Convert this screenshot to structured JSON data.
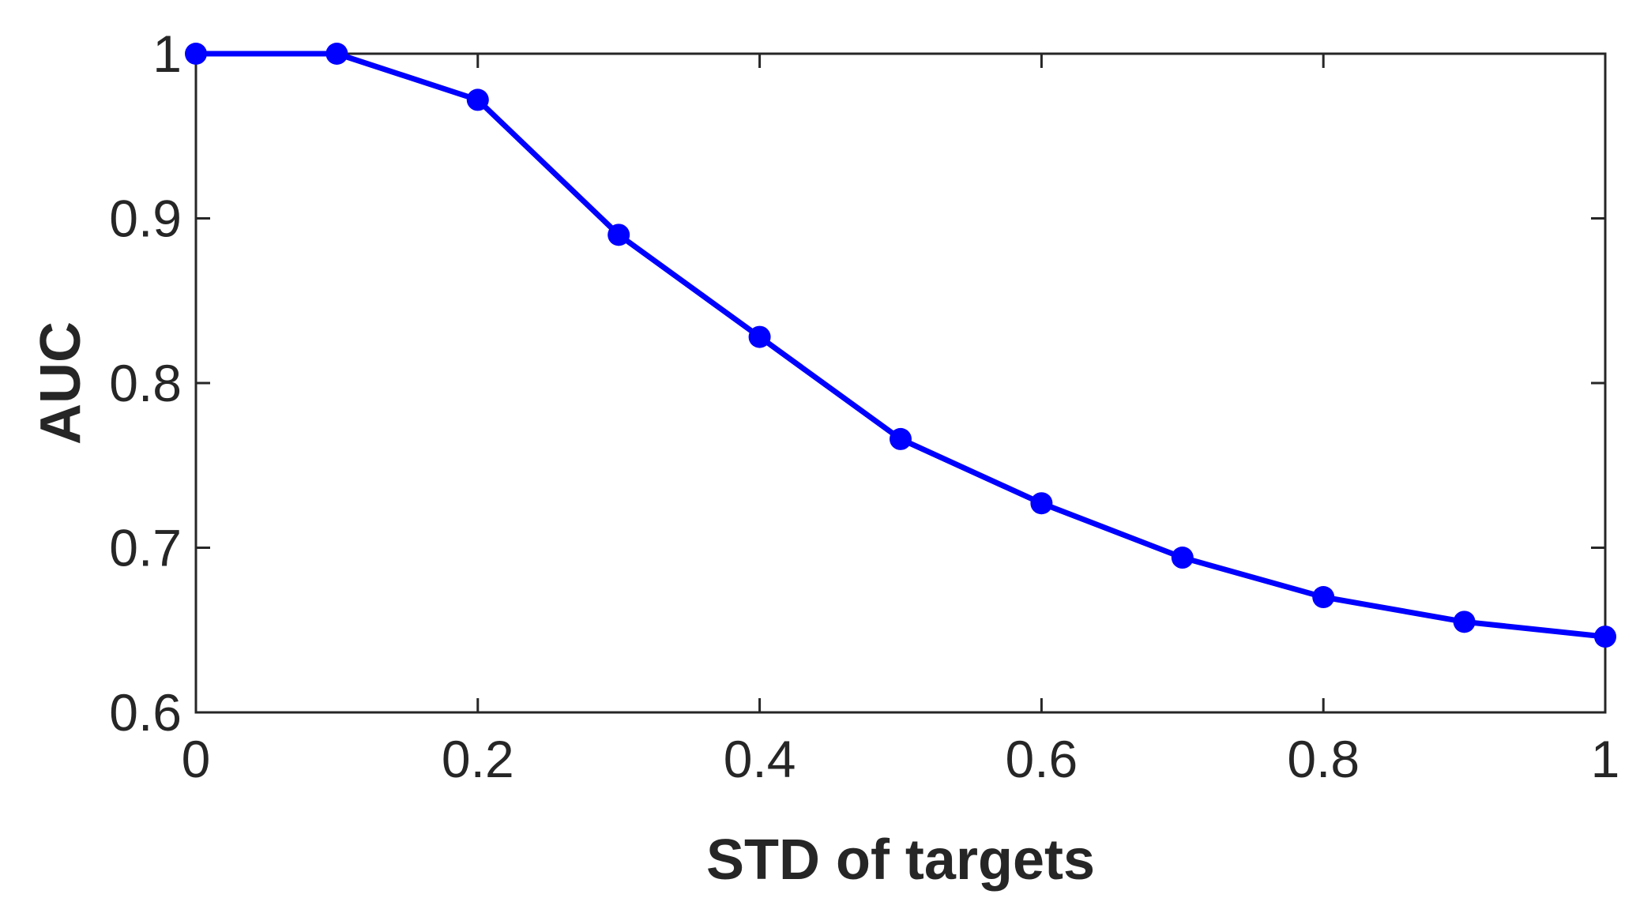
{
  "chart_data": {
    "type": "line",
    "title": "",
    "xlabel": "STD of targets",
    "ylabel": "AUC",
    "xlim": [
      0,
      1
    ],
    "ylim": [
      0.6,
      1
    ],
    "xticks": [
      0,
      0.2,
      0.4,
      0.6,
      0.8,
      1
    ],
    "xtick_labels": [
      "0",
      "0.2",
      "0.4",
      "0.6",
      "0.8",
      "1"
    ],
    "yticks": [
      0.6,
      0.7,
      0.8,
      0.9,
      1
    ],
    "ytick_labels": [
      "0.6",
      "0.7",
      "0.8",
      "0.9",
      "1"
    ],
    "grid": false,
    "legend": "none",
    "series": [
      {
        "color": "#0000ff",
        "marker": "circle",
        "x": [
          0,
          0.1,
          0.2,
          0.3,
          0.4,
          0.5,
          0.6,
          0.7,
          0.8,
          0.9,
          1.0
        ],
        "y": [
          1.0,
          1.0,
          0.972,
          0.89,
          0.828,
          0.766,
          0.727,
          0.694,
          0.67,
          0.655,
          0.646
        ]
      }
    ]
  }
}
